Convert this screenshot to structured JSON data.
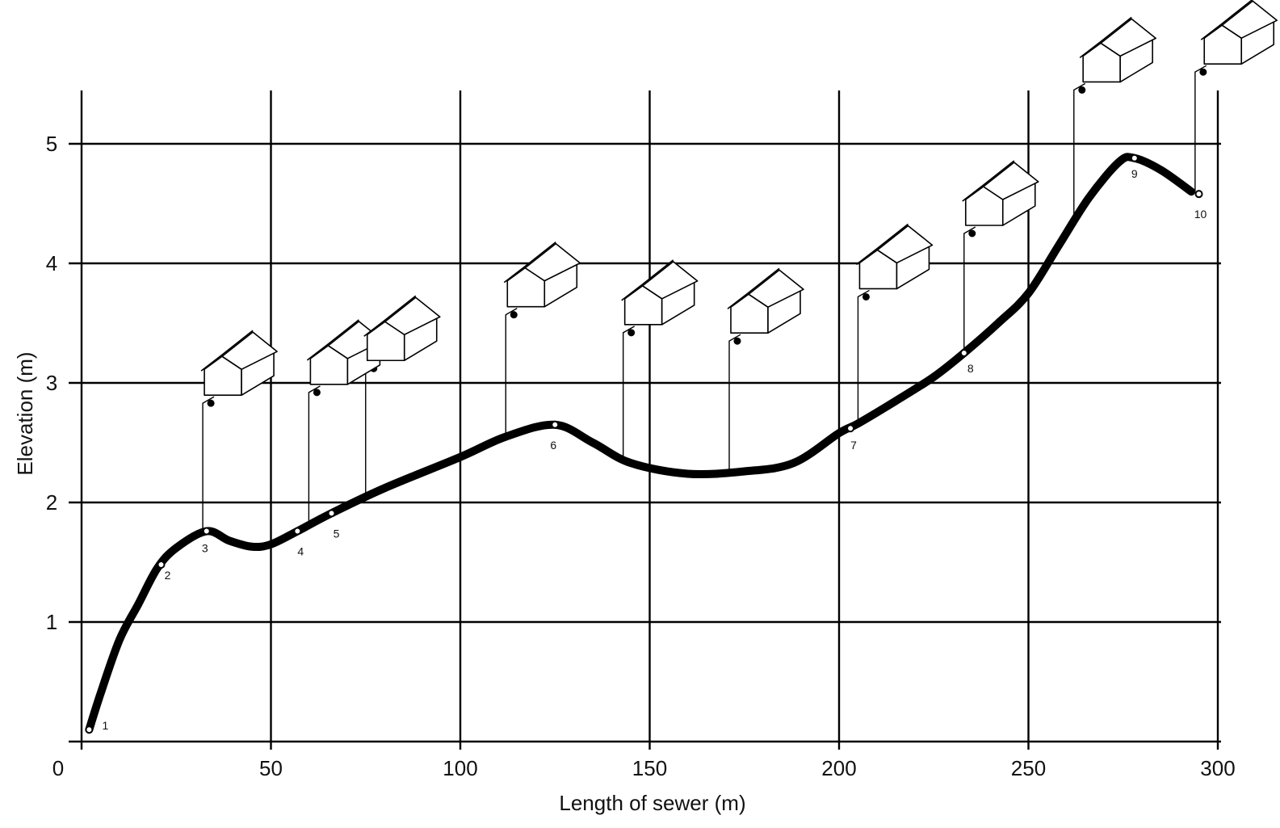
{
  "chart_data": {
    "type": "line",
    "xlabel": "Length of sewer (m)",
    "ylabel": "Elevation (m)",
    "xlim": [
      0,
      300
    ],
    "ylim": [
      0,
      5
    ],
    "x_ticks": [
      "0",
      "50",
      "100",
      "150",
      "200",
      "250",
      "300"
    ],
    "y_ticks": [
      "1",
      "2",
      "3",
      "4",
      "5"
    ],
    "grid": true,
    "series": [
      {
        "values": [
          {
            "x": 2,
            "y": 0.1
          },
          {
            "x": 5,
            "y": 0.4
          },
          {
            "x": 10,
            "y": 0.85
          },
          {
            "x": 15,
            "y": 1.15
          },
          {
            "x": 20,
            "y": 1.45
          },
          {
            "x": 25,
            "y": 1.62
          },
          {
            "x": 33,
            "y": 1.76
          },
          {
            "x": 39,
            "y": 1.68
          },
          {
            "x": 45,
            "y": 1.63
          },
          {
            "x": 50,
            "y": 1.65
          },
          {
            "x": 57,
            "y": 1.76
          },
          {
            "x": 66,
            "y": 1.91
          },
          {
            "x": 80,
            "y": 2.12
          },
          {
            "x": 100,
            "y": 2.38
          },
          {
            "x": 112,
            "y": 2.55
          },
          {
            "x": 125,
            "y": 2.65
          },
          {
            "x": 135,
            "y": 2.5
          },
          {
            "x": 145,
            "y": 2.33
          },
          {
            "x": 160,
            "y": 2.24
          },
          {
            "x": 175,
            "y": 2.26
          },
          {
            "x": 188,
            "y": 2.33
          },
          {
            "x": 200,
            "y": 2.58
          },
          {
            "x": 205,
            "y": 2.66
          },
          {
            "x": 215,
            "y": 2.85
          },
          {
            "x": 225,
            "y": 3.05
          },
          {
            "x": 233,
            "y": 3.25
          },
          {
            "x": 242,
            "y": 3.5
          },
          {
            "x": 250,
            "y": 3.75
          },
          {
            "x": 258,
            "y": 4.15
          },
          {
            "x": 266,
            "y": 4.55
          },
          {
            "x": 274,
            "y": 4.85
          },
          {
            "x": 278,
            "y": 4.88
          },
          {
            "x": 285,
            "y": 4.78
          },
          {
            "x": 293,
            "y": 4.6
          }
        ]
      }
    ],
    "nodes": [
      {
        "label": "1",
        "x": 2,
        "y": 0.1
      },
      {
        "label": "2",
        "x": 21,
        "y": 1.48
      },
      {
        "label": "3",
        "x": 33,
        "y": 1.76
      },
      {
        "label": "4",
        "x": 57,
        "y": 1.76
      },
      {
        "label": "5",
        "x": 66,
        "y": 1.91
      },
      {
        "label": "6",
        "x": 125,
        "y": 2.65
      },
      {
        "label": "7",
        "x": 203,
        "y": 2.62
      },
      {
        "label": "8",
        "x": 233,
        "y": 3.25
      },
      {
        "label": "9",
        "x": 278,
        "y": 4.88
      },
      {
        "label": "10",
        "x": 295,
        "y": 4.58
      }
    ],
    "houses": [
      {
        "x": 32,
        "y_connection": 2.83,
        "x_pipe": 32
      },
      {
        "x": 60,
        "y_connection": 2.92,
        "x_pipe": 60
      },
      {
        "x": 75,
        "y_connection": 3.12,
        "x_pipe": 75
      },
      {
        "x": 112,
        "y_connection": 3.57,
        "x_pipe": 112
      },
      {
        "x": 143,
        "y_connection": 3.42,
        "x_pipe": 143
      },
      {
        "x": 171,
        "y_connection": 3.35,
        "x_pipe": 171
      },
      {
        "x": 205,
        "y_connection": 3.72,
        "x_pipe": 205
      },
      {
        "x": 233,
        "y_connection": 4.25,
        "x_pipe": 233
      },
      {
        "x": 264,
        "y_connection": 5.45,
        "x_pipe": 262
      },
      {
        "x": 296,
        "y_connection": 5.6,
        "x_pipe": 294
      }
    ]
  }
}
